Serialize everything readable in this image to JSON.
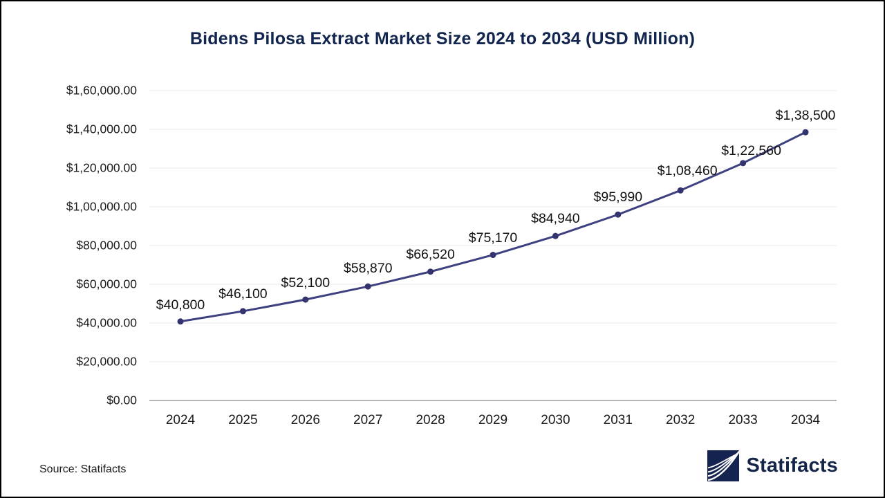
{
  "page": {
    "title": "Bidens Pilosa Extract Market Size 2024 to 2034 (USD Million)",
    "source_label": "Source: Statifacts",
    "brand_name": "Statifacts"
  },
  "colors": {
    "title_text": "#12254E",
    "series_line": "#3E4080",
    "marker": "#33336E",
    "grid_line": "#e9e9e9",
    "axis_line": "#b4b4b4",
    "tick_text": "#1a1a1a",
    "logo_navy": "#14234F"
  },
  "icons": {
    "logo": "statifacts-waves-icon"
  },
  "chart_data": {
    "type": "line",
    "title": "Bidens Pilosa Extract Market Size 2024 to 2034 (USD Million)",
    "xlabel": "",
    "ylabel": "",
    "categories": [
      2024,
      2025,
      2026,
      2027,
      2028,
      2029,
      2030,
      2031,
      2032,
      2033,
      2034
    ],
    "values": [
      40800,
      46100,
      52100,
      58870,
      66520,
      75170,
      84940,
      95990,
      108460,
      122560,
      138500
    ],
    "point_labels": [
      "$40,800",
      "$46,100",
      "$52,100",
      "$58,870",
      "$66,520",
      "$75,170",
      "$84,940",
      "$95,990",
      "$1,08,460",
      "$1,22,560",
      "$1,38,500"
    ],
    "y_ticks": {
      "values": [
        0,
        20000,
        40000,
        60000,
        80000,
        100000,
        120000,
        140000,
        160000
      ],
      "labels": [
        "$0.00",
        "$20,000.00",
        "$40,000.00",
        "$60,000.00",
        "$80,000.00",
        "$1,00,000.00",
        "$1,20,000.00",
        "$1,40,000.00",
        "$1,60,000.00"
      ]
    },
    "ylim": [
      0,
      160000
    ],
    "grid": "horizontal",
    "legend": "none",
    "series_color": "#3E4080"
  }
}
